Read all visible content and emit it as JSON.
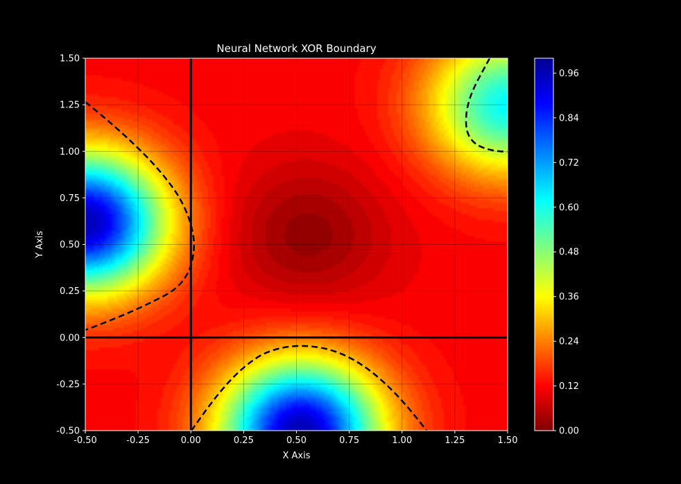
{
  "chart_data": {
    "type": "heatmap",
    "title": "Neural Network XOR Boundary",
    "xlabel": "X Axis",
    "ylabel": "Y Axis",
    "xlim": [
      -0.5,
      1.5
    ],
    "ylim": [
      -0.5,
      1.5
    ],
    "xticks": [
      "-0.50",
      "-0.25",
      "0.00",
      "0.25",
      "0.50",
      "0.75",
      "1.00",
      "1.25",
      "1.50"
    ],
    "yticks": [
      "-0.50",
      "-0.25",
      "0.00",
      "0.25",
      "0.50",
      "0.75",
      "1.00",
      "1.25",
      "1.50"
    ],
    "grid": true,
    "colormap": "jet_r",
    "colorbar": {
      "range": [
        0.0,
        1.0
      ],
      "ticks": [
        "0.00",
        "0.12",
        "0.24",
        "0.36",
        "0.48",
        "0.60",
        "0.72",
        "0.84",
        "0.96"
      ]
    },
    "decision_threshold": 0.5,
    "reference_lines": {
      "x": 0.0,
      "y": 0.0
    },
    "field_peaks": [
      {
        "x": -0.5,
        "y": 0.62,
        "value": 0.95
      },
      {
        "x": 0.52,
        "y": -0.5,
        "value": 0.95
      },
      {
        "x": 1.5,
        "y": 1.25,
        "value": 0.62
      },
      {
        "x": 0.55,
        "y": 0.55,
        "value": 0.02
      }
    ]
  }
}
